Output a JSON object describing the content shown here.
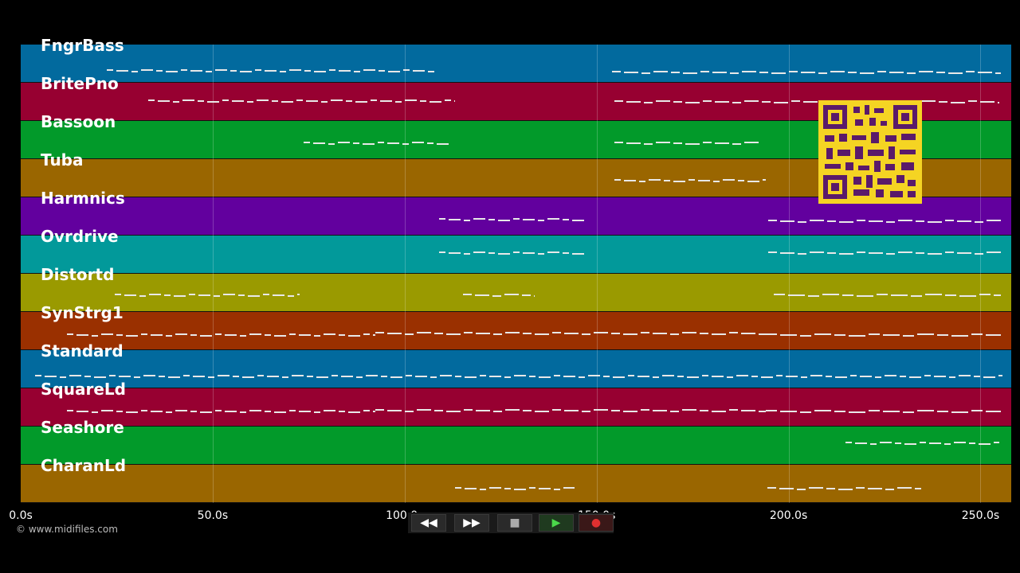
{
  "tracks": [
    {
      "name": "FngrBass",
      "color": "#026a9e"
    },
    {
      "name": "BritePno",
      "color": "#970031"
    },
    {
      "name": "Bassoon",
      "color": "#029a2a"
    },
    {
      "name": "Tuba",
      "color": "#9a6600"
    },
    {
      "name": "Harmnics",
      "color": "#62009e"
    },
    {
      "name": "Ovrdrive",
      "color": "#02999a"
    },
    {
      "name": "Distortd",
      "color": "#9a9a00"
    },
    {
      "name": "SynStrg1",
      "color": "#9a3000"
    },
    {
      "name": "Standard",
      "color": "#026a9e"
    },
    {
      "name": "SquareLd",
      "color": "#970031"
    },
    {
      "name": "Seashore",
      "color": "#029a2a"
    },
    {
      "name": "CharanLd",
      "color": "#9a6600"
    }
  ],
  "timeline": {
    "ticks": [
      "0.0s",
      "50.0s",
      "100.0s",
      "150.0s",
      "200.0s",
      "250.0s"
    ],
    "tick_seconds": [
      0,
      50,
      100,
      150,
      200,
      250
    ],
    "max_seconds": 258
  },
  "copyright": "© www.midifiles.com",
  "controls": {
    "rewind": "◀◀",
    "forward": "▶▶",
    "stop": "■",
    "play": "▶",
    "record": "●"
  },
  "qr": {
    "color": "#f5d423",
    "label": "qr-code"
  }
}
